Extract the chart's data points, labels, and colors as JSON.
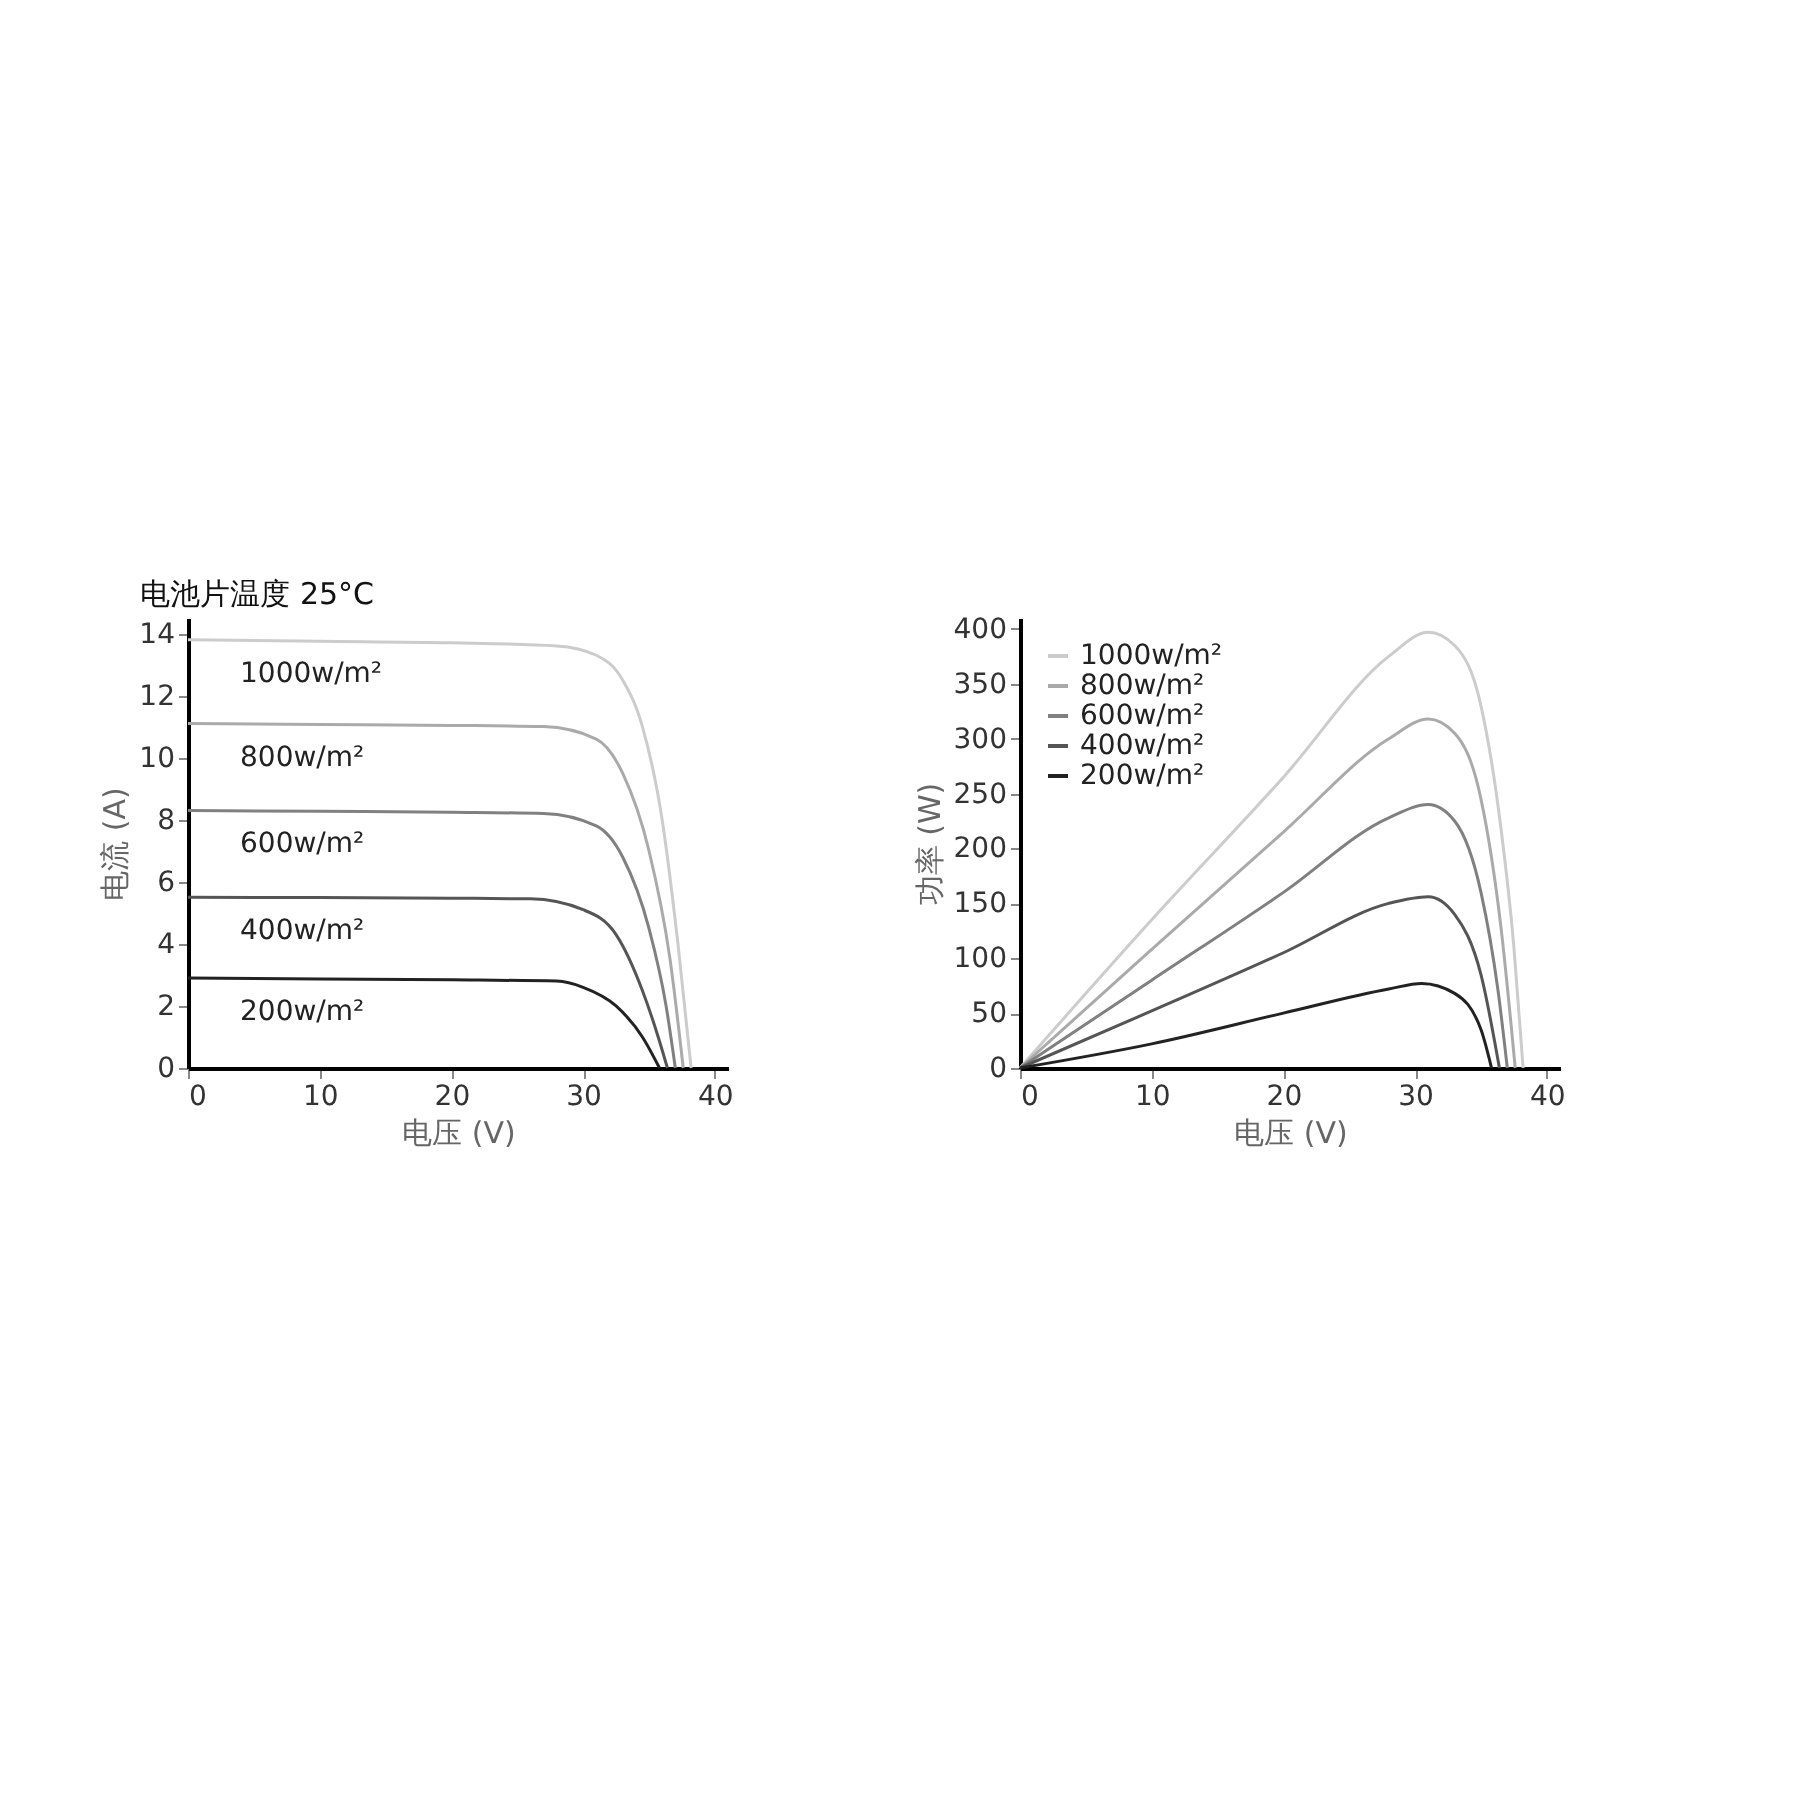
{
  "chart_data": [
    {
      "type": "line",
      "title": "电池片温度 25°C",
      "xlabel": "电压 (V)",
      "ylabel": "电流 (A)",
      "xlim": [
        0,
        41
      ],
      "xticks": [
        0,
        10,
        20,
        30,
        40
      ],
      "ylim": [
        0,
        14.5
      ],
      "yticks": [
        0,
        2,
        4,
        6,
        8,
        10,
        12,
        14
      ],
      "grid": false,
      "legend": false,
      "marker": "none",
      "line_style": "solid",
      "series": [
        {
          "name": "1000w/m²",
          "color": "#cccccc",
          "x": [
            0,
            10,
            20,
            28,
            31,
            33,
            34.5,
            36,
            37.2,
            38.2
          ],
          "values": [
            13.8,
            13.75,
            13.7,
            13.6,
            13.3,
            12.5,
            11,
            8,
            4,
            0
          ]
        },
        {
          "name": "800w/m²",
          "color": "#aaaaaa",
          "x": [
            0,
            10,
            20,
            27,
            31,
            33,
            35,
            36.6,
            37.6
          ],
          "values": [
            11.1,
            11.07,
            11.04,
            11,
            10.6,
            9.5,
            7,
            3.5,
            0
          ]
        },
        {
          "name": "600w/m²",
          "color": "#808080",
          "x": [
            0,
            10,
            20,
            27,
            31,
            33,
            35,
            36.3,
            37
          ],
          "values": [
            8.3,
            8.27,
            8.24,
            8.2,
            7.8,
            6.8,
            4.5,
            2,
            0
          ]
        },
        {
          "name": "400w/m²",
          "color": "#555555",
          "x": [
            0,
            10,
            20,
            26,
            30,
            32.5,
            34.5,
            35.7,
            36.4
          ],
          "values": [
            5.5,
            5.49,
            5.47,
            5.45,
            5.1,
            4.3,
            2.5,
            1,
            0
          ]
        },
        {
          "name": "200w/m²",
          "color": "#222222",
          "x": [
            0,
            10,
            20,
            28,
            30,
            32.5,
            34.5,
            35.8
          ],
          "values": [
            2.9,
            2.87,
            2.84,
            2.8,
            2.6,
            2,
            1,
            0
          ]
        }
      ]
    },
    {
      "type": "line",
      "xlabel": "电压 (V)",
      "ylabel": "功率 (W)",
      "xlim": [
        0,
        41
      ],
      "xticks": [
        0,
        10,
        20,
        30,
        40
      ],
      "ylim": [
        0,
        410
      ],
      "yticks": [
        0,
        50,
        100,
        150,
        200,
        250,
        300,
        350,
        400
      ],
      "grid": false,
      "legend": "top left",
      "marker": "none",
      "line_style": "solid",
      "series": [
        {
          "name": "1000w/m²",
          "color": "#cccccc",
          "x": [
            0,
            10,
            20,
            28,
            31,
            33,
            35,
            36.5,
            37.5,
            38.2
          ],
          "values": [
            0,
            135,
            265,
            375,
            397,
            385,
            330,
            220,
            110,
            0
          ]
        },
        {
          "name": "800w/m²",
          "color": "#aaaaaa",
          "x": [
            0,
            10,
            20,
            28,
            31,
            33,
            35,
            36.5,
            37.6
          ],
          "values": [
            0,
            108,
            215,
            300,
            318,
            305,
            245,
            130,
            0
          ]
        },
        {
          "name": "600w/m²",
          "color": "#808080",
          "x": [
            0,
            10,
            20,
            28,
            31,
            33,
            35,
            36.3,
            37
          ],
          "values": [
            0,
            80,
            160,
            228,
            240,
            225,
            160,
            70,
            0
          ]
        },
        {
          "name": "400w/m²",
          "color": "#555555",
          "x": [
            0,
            10,
            20,
            28,
            31,
            33,
            35,
            36.4
          ],
          "values": [
            0,
            52,
            105,
            150,
            156,
            140,
            85,
            0
          ]
        },
        {
          "name": "200w/m²",
          "color": "#222222",
          "x": [
            0,
            10,
            20,
            28,
            30.5,
            33,
            35,
            35.8
          ],
          "values": [
            0,
            22,
            50,
            72,
            77,
            68,
            35,
            0
          ]
        }
      ]
    }
  ]
}
